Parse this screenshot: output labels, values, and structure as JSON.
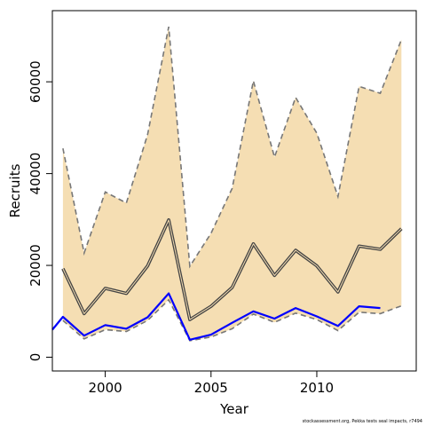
{
  "chart_data": {
    "type": "line",
    "title": "",
    "xlabel": "Year",
    "ylabel": "Recruits",
    "xlim": [
      1997.5,
      2014.7
    ],
    "ylim": [
      -3000,
      75500
    ],
    "x_ticks": [
      2000,
      2005,
      2010
    ],
    "y_ticks": [
      0,
      20000,
      40000,
      60000
    ],
    "x": [
      1998,
      1999,
      2000,
      2001,
      2002,
      2003,
      2004,
      2005,
      2006,
      2007,
      2008,
      2009,
      2010,
      2011,
      2012,
      2013,
      2014
    ],
    "grid": false,
    "legend": "none",
    "band": {
      "color": "#f5deb3",
      "upper": [
        45500,
        22700,
        36000,
        33600,
        48500,
        72000,
        19800,
        27000,
        36800,
        60200,
        43600,
        56600,
        48800,
        35000,
        59000,
        57500,
        69200
      ],
      "lower": [
        8000,
        4000,
        6000,
        5600,
        8000,
        12500,
        3600,
        4400,
        6200,
        9400,
        7600,
        9600,
        8200,
        5800,
        9800,
        9500,
        11200
      ]
    },
    "series": [
      {
        "values": [
          19300,
          9500,
          15000,
          13900,
          19900,
          29900,
          8200,
          11100,
          15200,
          24700,
          17800,
          23300,
          19900,
          14200,
          24200,
          23500,
          28000
        ],
        "color": "#444444",
        "style": "double"
      },
      {
        "values": [
          45500,
          22700,
          36000,
          33600,
          48500,
          72000,
          19800,
          27000,
          36800,
          60200,
          43600,
          56600,
          48800,
          35000,
          59000,
          57500,
          69200
        ],
        "color": "#777777",
        "style": "dashed"
      },
      {
        "values": [
          8000,
          4000,
          6000,
          5600,
          8000,
          12500,
          3600,
          4400,
          6200,
          9400,
          7600,
          9600,
          8200,
          5800,
          9800,
          9500,
          11200
        ],
        "color": "#777777",
        "style": "dashed"
      },
      {
        "x": [
          1997.5,
          1998,
          1999,
          2000,
          2001,
          2002,
          2003,
          2004,
          2005,
          2006,
          2007,
          2008,
          2009,
          2010,
          2011,
          2012,
          2013
        ],
        "values": [
          6000,
          8800,
          4700,
          7000,
          6200,
          8700,
          13900,
          3800,
          4900,
          7500,
          10000,
          8400,
          10700,
          8900,
          6800,
          11100,
          10700
        ],
        "color": "#0000ff",
        "style": "solid"
      }
    ]
  },
  "footer": "stockassessment.org, Pekka tests  seal impacts, r7494"
}
